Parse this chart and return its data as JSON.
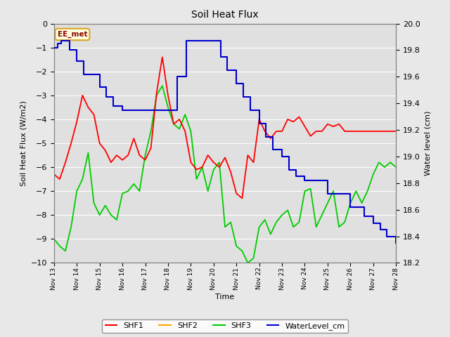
{
  "title": "Soil Heat Flux",
  "ylabel_left": "Soil Heat Flux (W/m2)",
  "ylabel_right": "Water level (cm)",
  "xlabel": "Time",
  "ylim_left": [
    -10.0,
    0.0
  ],
  "ylim_right": [
    18.2,
    20.0
  ],
  "yticks_left": [
    0.0,
    -1.0,
    -2.0,
    -3.0,
    -4.0,
    -5.0,
    -6.0,
    -7.0,
    -8.0,
    -9.0,
    -10.0
  ],
  "yticks_right": [
    20.0,
    19.8,
    19.6,
    19.4,
    19.2,
    19.0,
    18.8,
    18.6,
    18.4,
    18.2
  ],
  "x_tick_positions": [
    0,
    1,
    2,
    3,
    4,
    5,
    6,
    7,
    8,
    9,
    10,
    11,
    12,
    13,
    14,
    15
  ],
  "x_labels": [
    "Nov 13",
    "Nov 14",
    "Nov 15",
    "Nov 16",
    "Nov 17",
    "Nov 18",
    "Nov 19",
    "Nov 20",
    "Nov 21",
    "Nov 22",
    "Nov 23",
    "Nov 24",
    "Nov 25",
    "Nov 26",
    "Nov 27",
    "Nov 28"
  ],
  "annotation_text": "EE_met",
  "shf2_value": 0.0,
  "shf2_color": "#FFA500",
  "shf1_color": "#FF0000",
  "shf3_color": "#00CC00",
  "water_color": "#0000CC",
  "fig_bg": "#E8E8E8",
  "plot_bg": "#E0E0E0",
  "grid_color": "#FFFFFF",
  "shf1_x": [
    0.0,
    0.25,
    0.5,
    0.75,
    1.0,
    1.25,
    1.5,
    1.75,
    2.0,
    2.25,
    2.5,
    2.75,
    3.0,
    3.25,
    3.5,
    3.75,
    4.0,
    4.25,
    4.5,
    4.75,
    5.0,
    5.25,
    5.5,
    5.75,
    6.0,
    6.25,
    6.5,
    6.75,
    7.0,
    7.25,
    7.5,
    7.75,
    8.0,
    8.25,
    8.5,
    8.75,
    9.0,
    9.25,
    9.5,
    9.75,
    10.0,
    10.25,
    10.5,
    10.75,
    11.0,
    11.25,
    11.5,
    11.75,
    12.0,
    12.25,
    12.5,
    12.75,
    13.0,
    13.25,
    13.5,
    13.75,
    14.0,
    14.25,
    14.5,
    14.75,
    15.0
  ],
  "shf1_y": [
    -6.3,
    -6.5,
    -5.8,
    -5.0,
    -4.1,
    -3.0,
    -3.5,
    -3.8,
    -5.0,
    -5.3,
    -5.8,
    -5.5,
    -5.7,
    -5.5,
    -4.8,
    -5.5,
    -5.7,
    -5.2,
    -2.9,
    -1.4,
    -3.0,
    -4.2,
    -4.0,
    -4.5,
    -5.8,
    -6.1,
    -6.0,
    -5.5,
    -5.8,
    -6.0,
    -5.6,
    -6.2,
    -7.1,
    -7.3,
    -5.5,
    -5.8,
    -4.0,
    -4.5,
    -4.8,
    -4.5,
    -4.5,
    -4.0,
    -4.1,
    -3.9,
    -4.3,
    -4.7,
    -4.5,
    -4.5,
    -4.2,
    -4.3,
    -4.2,
    -4.5,
    -4.5,
    -4.5,
    -4.5,
    -4.5,
    -4.5,
    -4.5,
    -4.5,
    -4.5,
    -4.5
  ],
  "shf3_x": [
    0.0,
    0.25,
    0.5,
    0.75,
    1.0,
    1.25,
    1.5,
    1.75,
    2.0,
    2.25,
    2.5,
    2.75,
    3.0,
    3.25,
    3.5,
    3.75,
    4.0,
    4.25,
    4.5,
    4.75,
    5.0,
    5.25,
    5.5,
    5.75,
    6.0,
    6.25,
    6.5,
    6.75,
    7.0,
    7.25,
    7.5,
    7.75,
    8.0,
    8.25,
    8.5,
    8.75,
    9.0,
    9.25,
    9.5,
    9.75,
    10.0,
    10.25,
    10.5,
    10.75,
    11.0,
    11.25,
    11.5,
    11.75,
    12.0,
    12.25,
    12.5,
    12.75,
    13.0,
    13.25,
    13.5,
    13.75,
    14.0,
    14.25,
    14.5,
    14.75,
    15.0
  ],
  "shf3_y": [
    -9.0,
    -9.3,
    -9.5,
    -8.5,
    -7.0,
    -6.5,
    -5.4,
    -7.5,
    -8.0,
    -7.6,
    -8.0,
    -8.2,
    -7.1,
    -7.0,
    -6.7,
    -7.0,
    -5.5,
    -4.5,
    -3.0,
    -2.6,
    -3.5,
    -4.2,
    -4.4,
    -3.8,
    -4.5,
    -6.5,
    -6.0,
    -7.0,
    -6.1,
    -5.8,
    -8.5,
    -8.3,
    -9.3,
    -9.5,
    -10.0,
    -9.8,
    -8.5,
    -8.2,
    -8.8,
    -8.3,
    -8.0,
    -7.8,
    -8.5,
    -8.3,
    -7.0,
    -6.9,
    -8.5,
    -8.0,
    -7.5,
    -7.0,
    -8.5,
    -8.3,
    -7.5,
    -7.0,
    -7.5,
    -7.0,
    -6.3,
    -5.8,
    -6.0,
    -5.8,
    -6.0
  ],
  "water_x": [
    0.0,
    0.15,
    0.3,
    0.5,
    0.7,
    1.0,
    1.3,
    1.6,
    2.0,
    2.3,
    2.6,
    3.0,
    3.5,
    4.0,
    4.5,
    5.0,
    5.4,
    5.8,
    6.2,
    6.5,
    6.8,
    7.0,
    7.3,
    7.6,
    8.0,
    8.3,
    8.6,
    9.0,
    9.3,
    9.6,
    10.0,
    10.3,
    10.6,
    11.0,
    11.3,
    11.6,
    12.0,
    12.3,
    12.6,
    13.0,
    13.3,
    13.6,
    14.0,
    14.3,
    14.6,
    15.0
  ],
  "water_y": [
    19.82,
    19.85,
    19.87,
    19.87,
    19.8,
    19.72,
    19.62,
    19.62,
    19.52,
    19.45,
    19.38,
    19.35,
    19.35,
    19.35,
    19.35,
    19.35,
    19.6,
    19.87,
    19.87,
    19.87,
    19.87,
    19.87,
    19.75,
    19.65,
    19.55,
    19.45,
    19.35,
    19.25,
    19.15,
    19.05,
    19.0,
    18.9,
    18.85,
    18.82,
    18.82,
    18.82,
    18.72,
    18.72,
    18.72,
    18.62,
    18.62,
    18.55,
    18.5,
    18.45,
    18.4,
    18.35
  ]
}
